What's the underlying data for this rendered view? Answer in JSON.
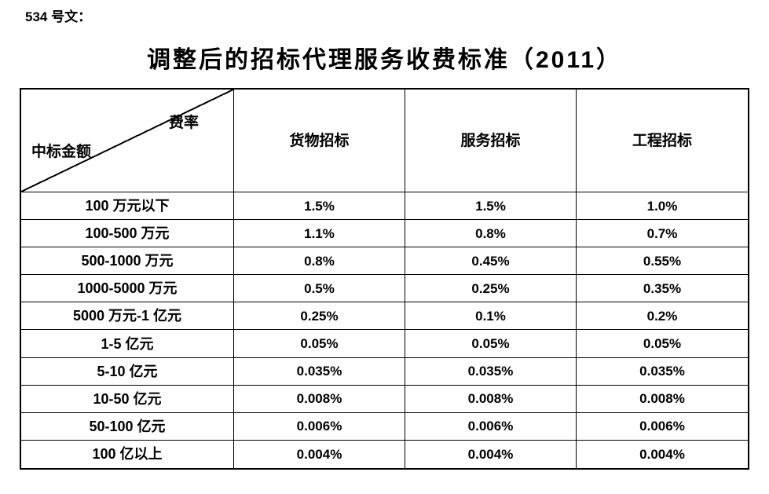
{
  "document": {
    "doc_number": "534 号文：",
    "title": "调整后的招标代理服务收费标准（2011）"
  },
  "table": {
    "corner": {
      "top_right_label": "费率",
      "bottom_left_label": "中标金额"
    },
    "columns": [
      "货物招标",
      "服务招标",
      "工程招标"
    ],
    "rows": [
      {
        "label": "100 万元以下",
        "values": [
          "1.5%",
          "1.5%",
          "1.0%"
        ]
      },
      {
        "label": "100-500 万元",
        "values": [
          "1.1%",
          "0.8%",
          "0.7%"
        ]
      },
      {
        "label": "500-1000 万元",
        "values": [
          "0.8%",
          "0.45%",
          "0.55%"
        ]
      },
      {
        "label": "1000-5000 万元",
        "values": [
          "0.5%",
          "0.25%",
          "0.35%"
        ]
      },
      {
        "label": "5000 万元-1 亿元",
        "values": [
          "0.25%",
          "0.1%",
          "0.2%"
        ]
      },
      {
        "label": "1-5 亿元",
        "values": [
          "0.05%",
          "0.05%",
          "0.05%"
        ]
      },
      {
        "label": "5-10 亿元",
        "values": [
          "0.035%",
          "0.035%",
          "0.035%"
        ]
      },
      {
        "label": "10-50 亿元",
        "values": [
          "0.008%",
          "0.008%",
          "0.008%"
        ]
      },
      {
        "label": "50-100 亿元",
        "values": [
          "0.006%",
          "0.006%",
          "0.006%"
        ]
      },
      {
        "label": "100 亿以上",
        "values": [
          "0.004%",
          "0.004%",
          "0.004%"
        ]
      }
    ]
  },
  "colors": {
    "text": "#000000",
    "border": "#000000",
    "background": "#ffffff"
  }
}
